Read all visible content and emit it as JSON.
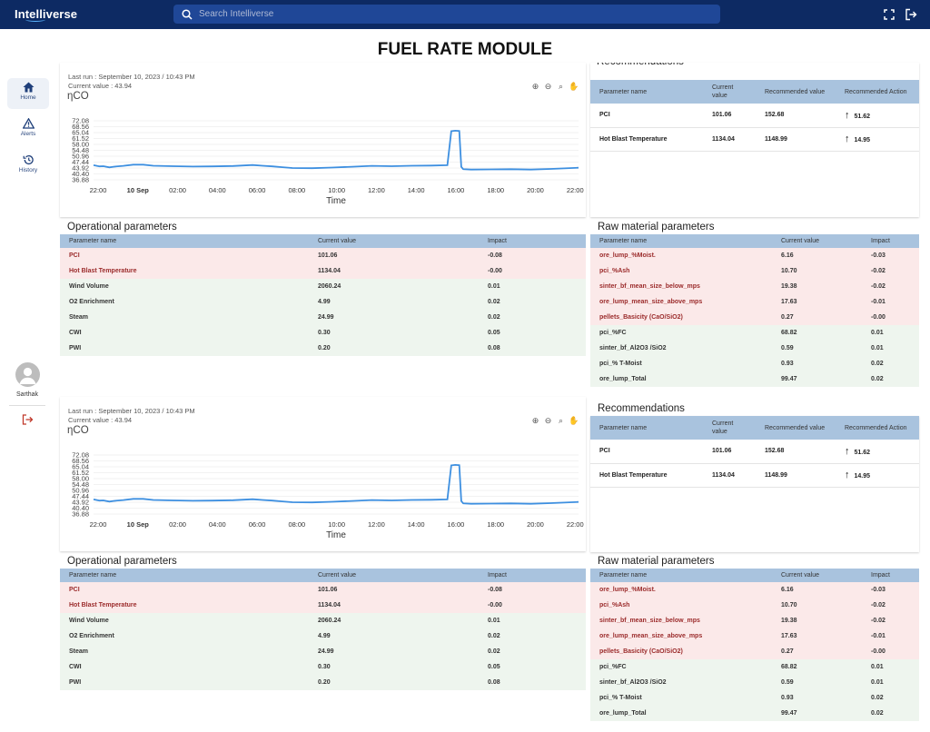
{
  "header": {
    "logo": "Intelliverse",
    "search_placeholder": "Search Intelliverse"
  },
  "title": "FUEL RATE MODULE",
  "sidebar": {
    "items": [
      {
        "label": "Home",
        "icon": "home-icon"
      },
      {
        "label": "Alerts",
        "icon": "warning-icon"
      },
      {
        "label": "History",
        "icon": "history-icon"
      }
    ],
    "user": "Sarthak"
  },
  "chart_data": [
    {
      "type": "line",
      "title": "ηCO",
      "xlabel": "Time",
      "ylabel": "",
      "yticks": [
        "72.08",
        "68.56",
        "65.04",
        "61.52",
        "58.00",
        "54.48",
        "50.96",
        "47.44",
        "43.92",
        "40.40",
        "36.88"
      ],
      "xticks": [
        "22:00",
        "10 Sep",
        "02:00",
        "04:00",
        "06:00",
        "08:00",
        "10:00",
        "12:00",
        "14:00",
        "16:00",
        "18:00",
        "20:00",
        "22:00"
      ],
      "ylim": [
        36.88,
        72.08
      ],
      "x": [
        0,
        0.3,
        0.5,
        0.8,
        1.0,
        1.5,
        2.0,
        2.5,
        3.0,
        4.0,
        5.0,
        6.0,
        7.0,
        8.0,
        8.5,
        9.0,
        9.5,
        10.0,
        11.0,
        12.0,
        13.0,
        14.0,
        15.0,
        16.0,
        17.0,
        17.8,
        18.0,
        18.2,
        18.4,
        18.5,
        18.6,
        19.0,
        20.0,
        21.0,
        22.0,
        23.0,
        24.4
      ],
      "y": [
        45.6,
        44.9,
        45.0,
        44.3,
        44.7,
        45.2,
        45.9,
        45.9,
        45.3,
        45.0,
        44.8,
        44.9,
        45.1,
        45.7,
        45.3,
        44.9,
        44.4,
        43.9,
        43.8,
        44.2,
        44.7,
        45.2,
        45.0,
        45.3,
        45.4,
        45.6,
        65.9,
        66.2,
        66.0,
        44.6,
        43.2,
        43.0,
        43.1,
        43.2,
        43.0,
        43.4,
        44.1
      ]
    }
  ],
  "charts": [
    {
      "last_run": "Last run : September 10, 2023 / 10:43 PM",
      "current_value": "Current value : 43.94",
      "title": "ηCO",
      "xlabel": "Time"
    },
    {
      "last_run": "Last run : September 10, 2023 / 10:43 PM",
      "current_value": "Current value : 43.94",
      "title": "ηCO",
      "xlabel": "Time"
    }
  ],
  "recommendations": {
    "title": "Recommendations",
    "headers": [
      "Parameter name",
      "Current value",
      "Recommended value",
      "Recommended Action"
    ],
    "rows": [
      {
        "name": "PCI",
        "current": "101.06",
        "recommended": "152.68",
        "action": "51.62"
      },
      {
        "name": "Hot Blast Temperature",
        "current": "1134.04",
        "recommended": "1148.99",
        "action": "14.95"
      }
    ]
  },
  "operational": {
    "title": "Operational parameters",
    "headers": [
      "Parameter name",
      "Current value",
      "Impact"
    ],
    "rows": [
      {
        "name": "PCI",
        "value": "101.06",
        "impact": "-0.08",
        "status": "neg"
      },
      {
        "name": "Hot Blast Temperature",
        "value": "1134.04",
        "impact": "-0.00",
        "status": "neg"
      },
      {
        "name": "Wind Volume",
        "value": "2060.24",
        "impact": "0.01",
        "status": "pos"
      },
      {
        "name": "O2 Enrichment",
        "value": "4.99",
        "impact": "0.02",
        "status": "pos"
      },
      {
        "name": "Steam",
        "value": "24.99",
        "impact": "0.02",
        "status": "pos"
      },
      {
        "name": "CWI",
        "value": "0.30",
        "impact": "0.05",
        "status": "pos"
      },
      {
        "name": "PWI",
        "value": "0.20",
        "impact": "0.08",
        "status": "pos"
      }
    ]
  },
  "raw": {
    "title": "Raw material parameters",
    "headers": [
      "Parameter name",
      "Current value",
      "Impact"
    ],
    "rows": [
      {
        "name": "ore_lump_%Moist.",
        "value": "6.16",
        "impact": "-0.03",
        "status": "neg"
      },
      {
        "name": "pci_%Ash",
        "value": "10.70",
        "impact": "-0.02",
        "status": "neg"
      },
      {
        "name": "sinter_bf_mean_size_below_mps",
        "value": "19.38",
        "impact": "-0.02",
        "status": "neg"
      },
      {
        "name": "ore_lump_mean_size_above_mps",
        "value": "17.63",
        "impact": "-0.01",
        "status": "neg"
      },
      {
        "name": "pellets_Basicity (CaO/SiO2)",
        "value": "0.27",
        "impact": "-0.00",
        "status": "neg"
      },
      {
        "name": "pci_%FC",
        "value": "68.82",
        "impact": "0.01",
        "status": "pos"
      },
      {
        "name": "sinter_bf_Al2O3 /SiO2",
        "value": "0.59",
        "impact": "0.01",
        "status": "pos"
      },
      {
        "name": "pci_% T-Moist",
        "value": "0.93",
        "impact": "0.02",
        "status": "pos"
      },
      {
        "name": "ore_lump_Total",
        "value": "99.47",
        "impact": "0.02",
        "status": "pos"
      }
    ]
  },
  "colors": {
    "topbar": "#0d2a63",
    "search": "#1f4797",
    "table_header": "#a9c3de",
    "negative_row": "#fbe9e9",
    "positive_row": "#eef5ee",
    "line": "#3d8fe0"
  }
}
